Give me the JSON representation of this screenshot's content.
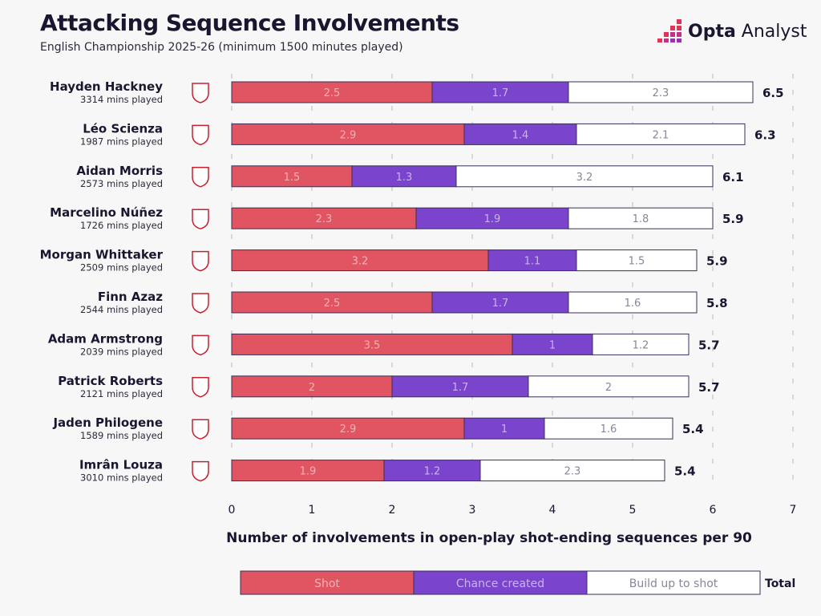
{
  "header": {
    "title": "Attacking Sequence Involvements",
    "subtitle": "English Championship 2025-26 (minimum 1500 minutes played)",
    "logo_bold": "Opta",
    "logo_light": " Analyst"
  },
  "colors": {
    "shot": "#e05561",
    "chance": "#7a44cc",
    "buildup": "#ffffff",
    "border": "#3a2f55",
    "text": "#1b1530"
  },
  "chart_data": {
    "type": "bar",
    "stacked": true,
    "orientation": "horizontal",
    "xlabel": "Number of involvements in open-play shot-ending sequences per 90",
    "xlim": [
      0,
      7
    ],
    "xticks": [
      "0",
      "1",
      "2",
      "3",
      "4",
      "5",
      "6",
      "7"
    ],
    "categories": [
      "Hayden Hackney",
      "Léo Scienza",
      "Aidan Morris",
      "Marcelino Núñez",
      "Morgan Whittaker",
      "Finn Azaz",
      "Adam Armstrong",
      "Patrick Roberts",
      "Jaden Philogene",
      "Imrân Louza"
    ],
    "minutes": [
      "3314 mins played",
      "1987 mins played",
      "2573 mins played",
      "1726 mins played",
      "2509 mins played",
      "2544 mins played",
      "2039 mins played",
      "2121 mins played",
      "1589 mins played",
      "3010 mins played"
    ],
    "clubs": [
      "middlesbrough-crest-icon",
      "southampton-crest-icon",
      "middlesbrough-crest-icon",
      "ipswich-crest-icon",
      "middlesbrough-crest-icon",
      "southampton-crest-icon",
      "southampton-crest-icon",
      "birmingham-crest-icon",
      "ipswich-crest-icon",
      "watford-crest-icon"
    ],
    "series": [
      {
        "name": "Shot",
        "values": [
          2.5,
          2.9,
          1.5,
          2.3,
          3.2,
          2.5,
          3.5,
          2.0,
          2.9,
          1.9
        ]
      },
      {
        "name": "Chance created",
        "values": [
          1.7,
          1.4,
          1.3,
          1.9,
          1.1,
          1.7,
          1.0,
          1.7,
          1.0,
          1.2
        ]
      },
      {
        "name": "Build up to shot",
        "values": [
          2.3,
          2.1,
          3.2,
          1.8,
          1.5,
          1.6,
          1.2,
          2.0,
          1.6,
          2.3
        ]
      }
    ],
    "totals": [
      "6.5",
      "6.3",
      "6.1",
      "5.9",
      "5.9",
      "5.8",
      "5.7",
      "5.7",
      "5.4",
      "5.4"
    ],
    "legend": {
      "position": "bottom",
      "total_label": "Total"
    },
    "grid": "dashed vertical"
  }
}
